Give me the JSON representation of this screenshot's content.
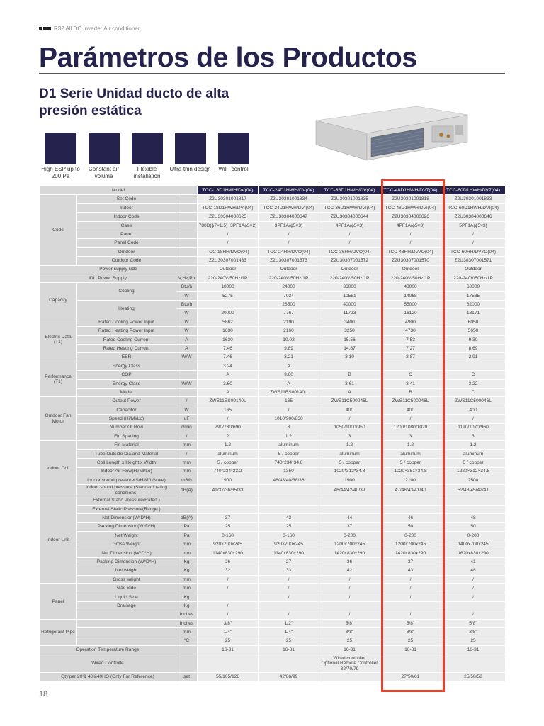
{
  "header": {
    "kicker": "R32 All DC Inverter Air conditioner",
    "title": "Parámetros de los Productos",
    "subtitle": "D1 Serie Unidad ducto de alta presión estática"
  },
  "features": [
    {
      "label": "High ESP up to 200 Pa",
      "icon": "high-esp-icon"
    },
    {
      "label": "Constant air volume",
      "icon": "constant-air-icon"
    },
    {
      "label": "Flexible installation",
      "icon": "flexible-installation-icon"
    },
    {
      "label": "Ultra-thin design",
      "icon": "ultra-thin-icon"
    },
    {
      "label": "WiFi control",
      "icon": "wifi-icon"
    }
  ],
  "colors": {
    "brand": "#25234d",
    "highlight": "#e8412c",
    "label_bg": "#d8d8d9",
    "value_bg": "#ececed"
  },
  "table": {
    "model_label": "Model",
    "models": [
      "TCC-18D1HWH/DV(04)",
      "TCC-24D1HWH/DV(04)",
      "TCC-36D1HWH/DV(04)",
      "TCC-48D1HWH/DV7(04)",
      "TCC-60D1HWH/DV7(04)"
    ],
    "highlighted_column": 3,
    "sections": [
      {
        "group": "Code",
        "rows": [
          {
            "label": "Set Code",
            "unit": "",
            "values": [
              "Z2U30301001817",
              "Z2U30301001834",
              "Z2U30301001835",
              "Z2U30301001818",
              "Z2U30301001833"
            ]
          },
          {
            "label": "Indoor",
            "unit": "",
            "values": [
              "TCC-18D1HWH/DVI(04)",
              "TCC-24D1HWH/DVI(04)",
              "TCC-36D1HWH/DVI(04)",
              "TCC-48D1HWH/DVI(04)",
              "TCC-60D1HWH/DVI(04)"
            ]
          },
          {
            "label": "Indoor Code",
            "unit": "",
            "values": [
              "Z2U30304000625",
              "Z2U30304000647",
              "Z2U30304000644",
              "Z2U30304000626",
              "Z2U30304000646"
            ]
          },
          {
            "label": "Case",
            "unit": "",
            "values": [
              "780D(ϕ7×1.5)+3PF1Aϕ5×2)",
              "3PF1A(ϕ5×3)",
              "4PF1A(ϕ5×3)",
              "4PF1A(ϕ5×3)",
              "5PF1A(ϕ5×3)"
            ]
          },
          {
            "label": "Panel",
            "unit": "",
            "values": [
              "/",
              "/",
              "/",
              "/",
              "/"
            ]
          },
          {
            "label": "Panel Code",
            "unit": "",
            "values": [
              "/",
              "/",
              "/",
              "/",
              "/"
            ]
          },
          {
            "label": "Outdoor",
            "unit": "",
            "values": [
              "TCC-18HH/DVO(04)",
              "TCC-24HH/DVO(04)",
              "TCC-36HH/DVO(04)",
              "TCC-48HH/DV7O(04)",
              "TCC-60HH/DV7O(04)"
            ]
          },
          {
            "label": "Outdoor Code",
            "unit": "",
            "values": [
              "Z2U30307001433",
              "Z2U30307001573",
              "Z2U30307001572",
              "Z2U30307001570",
              "Z2U30307001571"
            ]
          }
        ]
      },
      {
        "group": "",
        "label": "Power supply side",
        "span": 3,
        "rows": [
          {
            "label": "Power supply side",
            "unit": "",
            "values": [
              "Outdoor",
              "Outdoor",
              "Outdoor",
              "Outdoor",
              "Outdoor"
            ]
          }
        ]
      },
      {
        "group": "",
        "label": "IDU Power Supply",
        "span": 2,
        "rows": [
          {
            "label": "IDU Power Supply",
            "unit": "V,Hz,Ph",
            "values": [
              "220-240V/50Hz/1P",
              "220-240V/50Hz/1P",
              "220-240V/50Hz/1P",
              "220-240V/50Hz/1P",
              "220-240V/50Hz/1P"
            ]
          }
        ]
      },
      {
        "group": "Capacity",
        "rows": [
          {
            "label": "Cooling",
            "labelspan": 2,
            "unit": "Btu/h",
            "values": [
              "18000",
              "24000",
              "36000",
              "48000",
              "60000"
            ]
          },
          {
            "label": null,
            "unit": "W",
            "values": [
              "5275",
              "7034",
              "10551",
              "14068",
              "17585"
            ]
          },
          {
            "label": "Heating",
            "labelspan": 2,
            "unit": "Btu/h",
            "values": [
              "",
              "26500",
              "40000",
              "55000",
              "62000"
            ]
          },
          {
            "label": null,
            "unit": "W",
            "values": [
              "20000",
              "7767",
              "11723",
              "16120",
              "18171"
            ]
          }
        ]
      },
      {
        "group": "Electric Data (T1)",
        "rows": [
          {
            "label": "Rated Cooling Power Input",
            "unit": "W",
            "values": [
              "5862",
              "2190",
              "3400",
              "4900",
              "6050"
            ]
          },
          {
            "label": "Rated Heating Power Input",
            "unit": "W",
            "values": [
              "1630",
              "2160",
              "3250",
              "4730",
              "5650"
            ]
          },
          {
            "label": "Rated Cooling Current",
            "unit": "A",
            "values": [
              "1630",
              "10.02",
              "15.56",
              "7.53",
              "9.30"
            ]
          },
          {
            "label": "Rated Heating Current",
            "unit": "A",
            "values": [
              "7.46",
              "9.89",
              "14.87",
              "7.27",
              "8.69"
            ]
          },
          {
            "label": "EER",
            "unit": "W/W",
            "values": [
              "7.46",
              "3.21",
              "3.10",
              "2.87",
              "2.91"
            ]
          }
        ]
      },
      {
        "group": "Performance (T1)",
        "rows": [
          {
            "label": "Energy Class",
            "unit": "",
            "values": [
              "3.24",
              "A",
              "",
              "",
              ""
            ]
          },
          {
            "label": "COP",
            "unit": "",
            "values": [
              "A",
              "3.60",
              "B",
              "C",
              "C"
            ]
          },
          {
            "label": "Energy Class",
            "unit": "W/W",
            "values": [
              "3.60",
              "A",
              "3.61",
              "3.41",
              "3.22"
            ]
          },
          {
            "label": "Model",
            "unit": "",
            "values": [
              "A",
              "ZWS11BS00140L",
              "A",
              "B",
              "C"
            ]
          }
        ]
      },
      {
        "group": "Outdoor Fan Motor",
        "rows": [
          {
            "label": "Output Power",
            "unit": "/",
            "values": [
              "ZWS11BS00140L",
              "165",
              "ZWS11C500046L",
              "ZWS11C500046L",
              "ZWS11C500046L"
            ]
          },
          {
            "label": "Capacitor",
            "unit": "W",
            "values": [
              "165",
              "/",
              "400",
              "400",
              "400"
            ]
          },
          {
            "label": "Speed (Hi/Mi/Lo)",
            "unit": "uF",
            "values": [
              "/",
              "1010/900/830",
              "/",
              "/",
              "/"
            ]
          },
          {
            "label": "Number Of Row",
            "unit": "r/min",
            "values": [
              "790/730/690",
              "3",
              "1050/1000/950",
              "1200/1080/1020",
              "1190/1070/960"
            ]
          },
          {
            "label": "Fin Spacing",
            "unit": "/",
            "values": [
              "2",
              "1.2",
              "3",
              "3",
              "3"
            ]
          }
        ]
      },
      {
        "group": "Indoor Coil",
        "rows": [
          {
            "label": "Fin Material",
            "unit": "mm",
            "values": [
              "1.2",
              "aluminum",
              "1.2",
              "1.2",
              "1.2"
            ]
          },
          {
            "label": "Tube Outside Dia.and Material",
            "unit": "/",
            "values": [
              "aluminum",
              "5 / copper",
              "aluminum",
              "aluminum",
              "aluminum"
            ]
          },
          {
            "label": "Coil Length x Height x Width",
            "unit": "mm",
            "values": [
              "5 / copper",
              "740*234*34.8",
              "5 / copper",
              "5 / copper",
              "5 / copper"
            ]
          },
          {
            "label": "Indoor Air Flow(Hi/Mi/Lo)",
            "unit": "mm",
            "values": [
              "740*234*23.2",
              "1350",
              "1020*312*34.8",
              "1020×351×34.8",
              "1220×312×34.8"
            ]
          },
          {
            "label": "Indoor sound pressure(S/H/M/L/Mute)",
            "unit": "m3/h",
            "values": [
              "900",
              "46/43/40/38/36",
              "1900",
              "2100",
              "2500"
            ]
          },
          {
            "label": "Indoor sound pressure (Standard rating conditions)",
            "unit": "dB(A)",
            "values": [
              "41/37/36/35/33",
              "",
              "46/44/42/40/39",
              "47/46/43/41/40",
              "52/48/45/42/41"
            ]
          }
        ]
      },
      {
        "group": "Indoor Unit",
        "rows": [
          {
            "label": "External Static Pressure(Rated )",
            "unit": "",
            "values": [
              "",
              "",
              "",
              "",
              ""
            ]
          },
          {
            "label": "External Static Pressure(Range )",
            "unit": "",
            "values": [
              "",
              "",
              "",
              "",
              ""
            ]
          },
          {
            "label": "Net Dimension(W*D*H)",
            "unit": "dB(A)",
            "values": [
              "37",
              "43",
              "44",
              "46",
              "48"
            ]
          },
          {
            "label": "Packing Dimension(W*D*H)",
            "unit": "Pa",
            "values": [
              "25",
              "25",
              "37",
              "50",
              "50"
            ]
          },
          {
            "label": "Net Weight",
            "unit": "Pa",
            "values": [
              "0-160",
              "0-160",
              "0-200",
              "0-200",
              "0-200"
            ]
          },
          {
            "label": "Gross Weight",
            "unit": "mm",
            "values": [
              "920×700×245",
              "920×700×245",
              "1200x700x245",
              "1200x700x245",
              "1400x700x245"
            ]
          },
          {
            "label": "Net Dimension (W*D*H)",
            "unit": "mm",
            "values": [
              "1140x830x290",
              "1140x830x290",
              "1420x830x290",
              "1420x830x290",
              "1620x830x290"
            ]
          },
          {
            "label": "Packing Dimension (W*D*H)",
            "unit": "Kg",
            "values": [
              "26",
              "27",
              "36",
              "37",
              "41"
            ]
          },
          {
            "label": "Net weight",
            "unit": "Kg",
            "values": [
              "32",
              "33",
              "42",
              "43",
              "48"
            ]
          },
          {
            "label": "Gross weight",
            "unit": "mm",
            "values": [
              "/",
              "/",
              "/",
              "/",
              "/"
            ]
          }
        ]
      },
      {
        "group": "Panel",
        "rows": [
          {
            "label": "Gas Side",
            "unit": "mm",
            "values": [
              "/",
              "/",
              "/",
              "/",
              "/"
            ]
          },
          {
            "label": "Liquid Side",
            "unit": "Kg",
            "values": [
              "",
              "/",
              "/",
              "/",
              "/"
            ]
          },
          {
            "label": "Drainage",
            "unit": "Kg",
            "values": [
              "/",
              "",
              "",
              "",
              ""
            ]
          },
          {
            "label": "",
            "unit": "Inches",
            "values": [
              "/",
              "/",
              "/",
              "/",
              "/"
            ]
          }
        ]
      },
      {
        "group": "Refrigerant Pipe",
        "rows": [
          {
            "label": "",
            "unit": "Inches",
            "values": [
              "3/8\"",
              "1/2\"",
              "5/8\"",
              "5/8\"",
              "5/8\""
            ]
          },
          {
            "label": "",
            "unit": "mm",
            "values": [
              "1/4\"",
              "1/4\"",
              "3/8\"",
              "3/8\"",
              "3/8\""
            ]
          },
          {
            "label": "",
            "unit": "°C",
            "values": [
              "25",
              "25",
              "25",
              "25",
              "25"
            ]
          }
        ]
      },
      {
        "group": "",
        "label": "Operation Temperature Range",
        "span": 2,
        "rows": [
          {
            "label": "Operation Temperature Range",
            "unit": "",
            "values": [
              "16-31",
              "16-31",
              "16-31",
              "16-31",
              "16-31"
            ]
          }
        ]
      },
      {
        "group": "",
        "label": "Wired Controlle",
        "span": 2,
        "tall": true,
        "rows": [
          {
            "label": "Wired Controlle",
            "unit": "",
            "values": [
              "",
              "",
              "Wired controller\nOptional Remote Controller\n32/70/79",
              "",
              ""
            ]
          }
        ]
      },
      {
        "group": "",
        "label": "Qty'per 20'& 40'&40HQ (Only For Reference)",
        "span": 2,
        "rows": [
          {
            "label": "Qty'per 20'& 40'&40HQ (Only For Reference)",
            "unit": "set",
            "values": [
              "55/105/128",
              "42/86/99",
              "",
              "27/50/61",
              "25/50/58"
            ]
          }
        ]
      }
    ]
  },
  "page_number": "18"
}
